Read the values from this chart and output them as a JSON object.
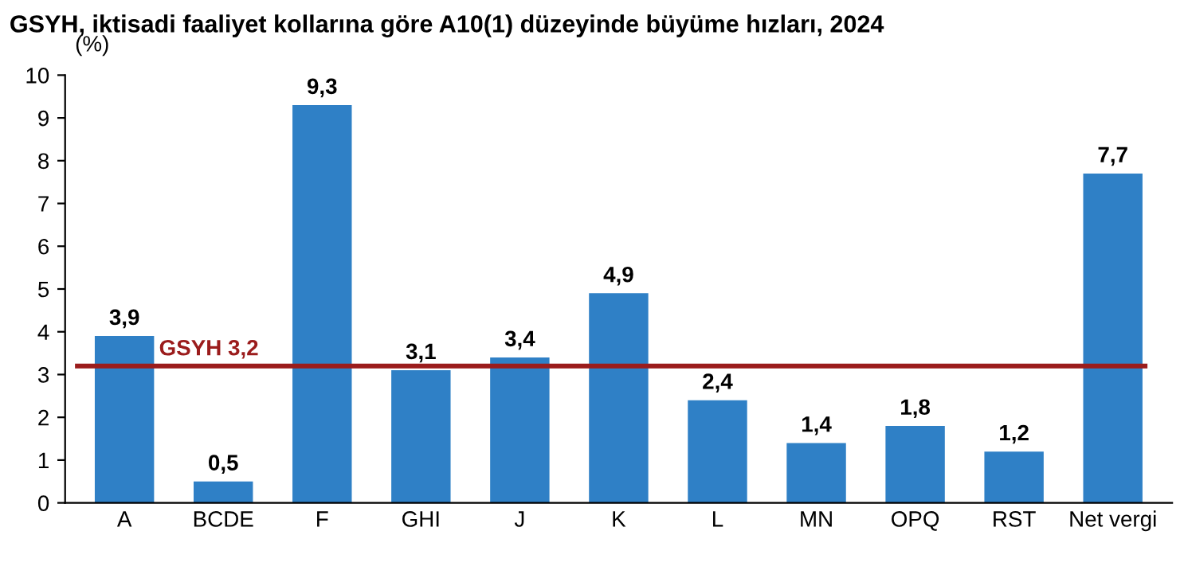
{
  "chart_data": {
    "type": "bar",
    "title": "GSYH, iktisadi faaliyet kollarına göre A10(1) düzeyinde büyüme hızları, 2024",
    "ylabel": "(%)",
    "categories": [
      "A",
      "BCDE",
      "F",
      "GHI",
      "J",
      "K",
      "L",
      "MN",
      "OPQ",
      "RST",
      "Net vergi"
    ],
    "series": [
      {
        "color": "#2f80c6",
        "values": [
          3.9,
          0.5,
          9.3,
          3.1,
          3.4,
          4.9,
          2.4,
          1.4,
          1.8,
          1.2,
          7.7
        ],
        "value_labels": [
          "3,9",
          "0,5",
          "9,3",
          "3,1",
          "3,4",
          "4,9",
          "2,4",
          "1,4",
          "1,8",
          "1,2",
          "7,7"
        ]
      }
    ],
    "ref_lines": [
      {
        "axis": "y",
        "value": 3.2,
        "label": "GSYH 3,2",
        "color": "#9b1c1c",
        "line_style": "solid"
      }
    ],
    "ylim": [
      0,
      10
    ],
    "yticks": [
      0,
      1,
      2,
      3,
      4,
      5,
      6,
      7,
      8,
      9,
      10
    ],
    "grid": false,
    "legend": false
  }
}
